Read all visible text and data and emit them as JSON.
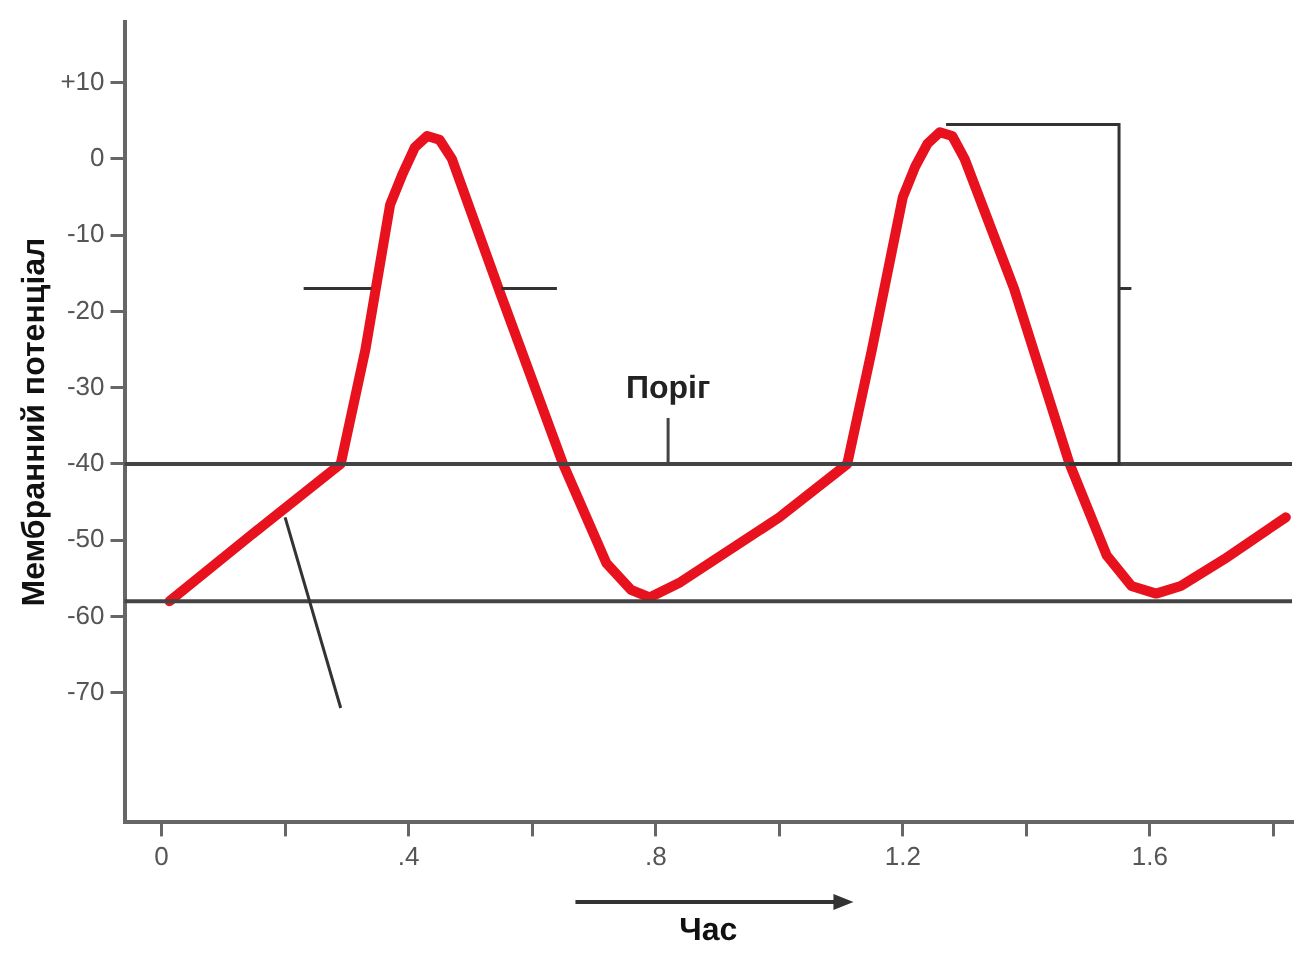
{
  "chart_data": {
    "type": "line",
    "xlabel": "Час",
    "ylabel": "Мембранний потенціал",
    "x": [
      0.013,
      0.15,
      0.29,
      0.33,
      0.37,
      0.39,
      0.41,
      0.43,
      0.45,
      0.47,
      0.55,
      0.65,
      0.72,
      0.76,
      0.79,
      0.84,
      1.0,
      1.11,
      1.15,
      1.2,
      1.22,
      1.24,
      1.26,
      1.28,
      1.3,
      1.38,
      1.47,
      1.53,
      1.57,
      1.61,
      1.65,
      1.72,
      1.82
    ],
    "series": [
      {
        "color": "#e8121e",
        "values": [
          -58,
          -49,
          -40,
          -25,
          -6,
          -2,
          1.5,
          3,
          2.5,
          0,
          -18,
          -40,
          -53,
          -56.5,
          -57.5,
          -55.5,
          -47,
          -40,
          -25,
          -5,
          -1,
          2,
          3.5,
          3,
          0,
          -17,
          -40,
          -52,
          -56,
          -57,
          -56,
          -52.5,
          -47
        ]
      }
    ],
    "xlim": [
      -0.06,
      1.83
    ],
    "ylim": [
      -87,
      18
    ],
    "xticks": [
      0,
      {
        "value": 0.2,
        "label": null
      },
      {
        "value": 0.4,
        "label": ".4"
      },
      {
        "value": 0.6,
        "label": null
      },
      {
        "value": 0.8,
        "label": ".8"
      },
      {
        "value": 1.0,
        "label": null
      },
      1.2,
      {
        "value": 1.4,
        "label": null
      },
      1.6,
      {
        "value": 1.8,
        "label": null
      }
    ],
    "yticks": [
      {
        "value": 10,
        "label": "+10"
      },
      0,
      -10,
      -20,
      -30,
      -40,
      -50,
      -60,
      -70
    ],
    "ref_lines": [
      {
        "axis": "y",
        "value": -40,
        "color": "#444444"
      },
      {
        "axis": "y",
        "value": -58,
        "color": "#444444"
      }
    ],
    "annotations": [
      {
        "text": "Поріг",
        "x": 0.82,
        "y": -40
      }
    ],
    "grid": false,
    "legend": false,
    "marker": "none",
    "line_style": "solid"
  }
}
